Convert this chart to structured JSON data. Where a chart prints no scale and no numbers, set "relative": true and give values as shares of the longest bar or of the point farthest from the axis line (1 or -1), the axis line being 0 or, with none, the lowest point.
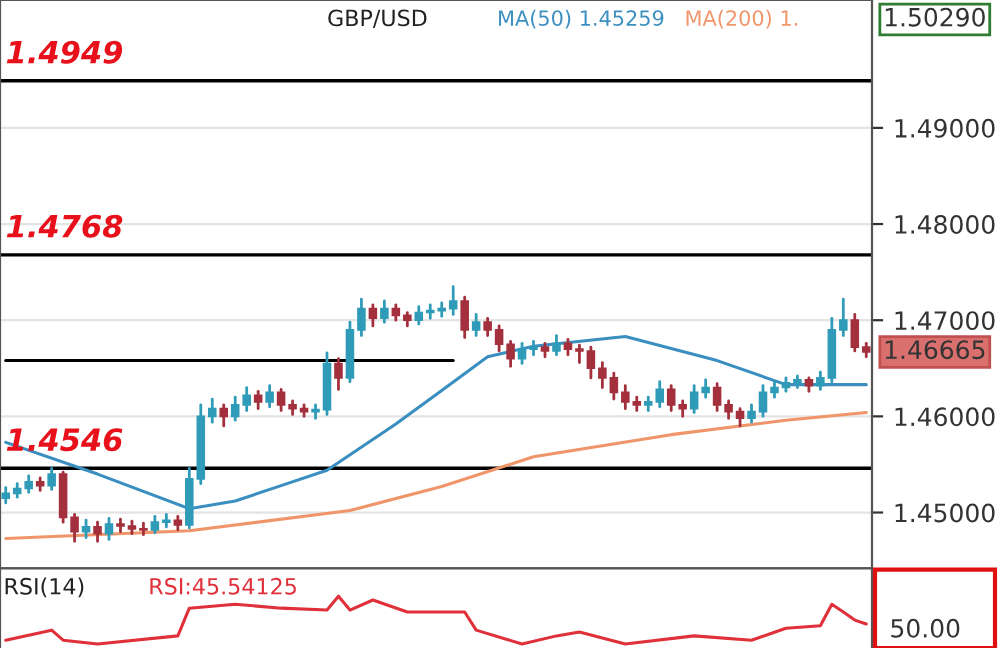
{
  "chart_data": [
    {
      "type": "candlestick",
      "title": "GBP/USD",
      "categories": [
        null,
        null,
        null,
        null,
        null,
        null,
        null,
        null,
        null,
        null,
        null,
        null,
        null,
        null,
        null,
        null,
        null,
        null,
        null,
        null,
        null,
        null,
        null,
        null,
        null,
        null,
        null,
        null,
        null,
        null,
        null,
        null,
        null,
        null,
        null,
        null,
        null,
        null,
        null,
        null,
        null,
        null,
        null,
        null,
        null,
        null,
        null,
        null,
        null,
        null,
        null,
        null,
        null,
        null,
        null,
        null,
        null,
        null,
        null,
        null,
        null,
        null,
        null,
        null,
        null,
        null,
        null,
        null,
        null,
        null,
        null,
        null,
        null,
        null,
        null,
        null
      ],
      "colors": [
        "#2f9bb8",
        "#2f9bb8",
        "#2f9bb8",
        "#a3303c",
        "#2f9bb8",
        "#a3303c",
        "#a3303c",
        "#2f9bb8",
        "#a3303c",
        "#2f9bb8",
        "#a3303c",
        "#a3303c",
        "#a3303c",
        "#2f9bb8",
        "#2f9bb8",
        "#a3303c",
        "#2f9bb8",
        "#2f9bb8",
        "#2f9bb8",
        "#a3303c",
        "#2f9bb8",
        "#2f9bb8",
        "#a3303c",
        "#2f9bb8",
        "#a3303c",
        "#a3303c",
        "#a3303c",
        "#2f9bb8",
        "#2f9bb8",
        "#a3303c",
        "#2f9bb8",
        "#2f9bb8",
        "#a3303c",
        "#2f9bb8",
        "#a3303c",
        "#a3303c",
        "#2f9bb8",
        "#2f9bb8",
        "#2f9bb8",
        "#2f9bb8",
        "#a3303c",
        "#2f9bb8",
        "#a3303c",
        "#a3303c",
        "#a3303c",
        "#2f9bb8",
        "#2f9bb8",
        "#a3303c",
        "#2f9bb8",
        "#a3303c",
        "#a3303c",
        "#a3303c",
        "#a3303c",
        "#a3303c",
        "#a3303c",
        "#a3303c",
        "#2f9bb8",
        "#2f9bb8",
        "#a3303c",
        "#a3303c",
        "#2f9bb8",
        "#2f9bb8",
        "#a3303c",
        "#a3303c",
        "#a3303c",
        "#2f9bb8",
        "#2f9bb8",
        "#2f9bb8",
        "#2f9bb8",
        "#2f9bb8",
        "#a3303c",
        "#2f9bb8",
        "#2f9bb8",
        "#2f9bb8",
        "#a3303c",
        "#a3303c"
      ],
      "ohlc": [
        [
          1.4515,
          1.4526,
          1.451,
          1.452
        ],
        [
          1.452,
          1.453,
          1.4516,
          1.4525
        ],
        [
          1.4525,
          1.4538,
          1.4521,
          1.4532
        ],
        [
          1.4532,
          1.4536,
          1.4523,
          1.4528
        ],
        [
          1.4528,
          1.4546,
          1.4524,
          1.454
        ],
        [
          1.454,
          1.4542,
          1.449,
          1.4495
        ],
        [
          1.4495,
          1.4498,
          1.447,
          1.448
        ],
        [
          1.448,
          1.4492,
          1.4474,
          1.4485
        ],
        [
          1.4485,
          1.449,
          1.447,
          1.4478
        ],
        [
          1.4478,
          1.4494,
          1.4472,
          1.4488
        ],
        [
          1.4488,
          1.4493,
          1.448,
          1.4486
        ],
        [
          1.4486,
          1.4491,
          1.4478,
          1.4483
        ],
        [
          1.4483,
          1.4489,
          1.4477,
          1.4482
        ],
        [
          1.4482,
          1.4496,
          1.4479,
          1.449
        ],
        [
          1.449,
          1.4498,
          1.4485,
          1.4492
        ],
        [
          1.4492,
          1.4496,
          1.4482,
          1.4487
        ],
        [
          1.4487,
          1.4546,
          1.4484,
          1.4535
        ],
        [
          1.4535,
          1.4612,
          1.453,
          1.46
        ],
        [
          1.46,
          1.4618,
          1.4594,
          1.4608
        ],
        [
          1.4608,
          1.4612,
          1.459,
          1.46
        ],
        [
          1.46,
          1.462,
          1.4596,
          1.4612
        ],
        [
          1.4612,
          1.463,
          1.4606,
          1.4622
        ],
        [
          1.4622,
          1.4626,
          1.4608,
          1.4615
        ],
        [
          1.4615,
          1.4632,
          1.461,
          1.4625
        ],
        [
          1.4625,
          1.4628,
          1.4606,
          1.4612
        ],
        [
          1.4612,
          1.4616,
          1.4602,
          1.4608
        ],
        [
          1.4608,
          1.4612,
          1.46,
          1.4605
        ],
        [
          1.4605,
          1.4612,
          1.4598,
          1.4607
        ],
        [
          1.4607,
          1.4666,
          1.4602,
          1.4655
        ],
        [
          1.4655,
          1.466,
          1.4628,
          1.464
        ],
        [
          1.464,
          1.4698,
          1.4636,
          1.469
        ],
        [
          1.469,
          1.4722,
          1.4684,
          1.4712
        ],
        [
          1.4712,
          1.4716,
          1.4694,
          1.4702
        ],
        [
          1.4702,
          1.472,
          1.4698,
          1.4712
        ],
        [
          1.4712,
          1.4716,
          1.47,
          1.4705
        ],
        [
          1.4705,
          1.4708,
          1.4694,
          1.47
        ],
        [
          1.47,
          1.4714,
          1.4696,
          1.4708
        ],
        [
          1.4708,
          1.4716,
          1.4702,
          1.471
        ],
        [
          1.471,
          1.4718,
          1.4704,
          1.4712
        ],
        [
          1.4712,
          1.4735,
          1.4706,
          1.472
        ],
        [
          1.472,
          1.4724,
          1.4682,
          1.469
        ],
        [
          1.469,
          1.4706,
          1.4684,
          1.4698
        ],
        [
          1.4698,
          1.4702,
          1.4684,
          1.469
        ],
        [
          1.469,
          1.4694,
          1.4668,
          1.4675
        ],
        [
          1.4675,
          1.4678,
          1.4652,
          1.466
        ],
        [
          1.466,
          1.4676,
          1.4655,
          1.467
        ],
        [
          1.467,
          1.4678,
          1.4664,
          1.4672
        ],
        [
          1.4672,
          1.4676,
          1.4662,
          1.4668
        ],
        [
          1.4668,
          1.4684,
          1.4664,
          1.4676
        ],
        [
          1.4676,
          1.468,
          1.4664,
          1.467
        ],
        [
          1.467,
          1.4674,
          1.4656,
          1.4668
        ],
        [
          1.4668,
          1.4672,
          1.464,
          1.465
        ],
        [
          1.465,
          1.4656,
          1.463,
          1.464
        ],
        [
          1.464,
          1.4645,
          1.4618,
          1.4625
        ],
        [
          1.4625,
          1.4632,
          1.4608,
          1.4615
        ],
        [
          1.4615,
          1.462,
          1.4606,
          1.4612
        ],
        [
          1.4612,
          1.462,
          1.4606,
          1.4615
        ],
        [
          1.4615,
          1.4636,
          1.461,
          1.4628
        ],
        [
          1.4628,
          1.4632,
          1.4606,
          1.4612
        ],
        [
          1.4612,
          1.4616,
          1.46,
          1.4608
        ],
        [
          1.4608,
          1.4632,
          1.4604,
          1.4625
        ],
        [
          1.4625,
          1.4638,
          1.462,
          1.463
        ],
        [
          1.463,
          1.4634,
          1.4606,
          1.4612
        ],
        [
          1.4612,
          1.4616,
          1.4598,
          1.4605
        ],
        [
          1.4605,
          1.4608,
          1.459,
          1.4598
        ],
        [
          1.4598,
          1.4612,
          1.4594,
          1.4605
        ],
        [
          1.4605,
          1.4632,
          1.46,
          1.4625
        ],
        [
          1.4625,
          1.4636,
          1.462,
          1.463
        ],
        [
          1.463,
          1.464,
          1.4626,
          1.4635
        ],
        [
          1.4635,
          1.4642,
          1.463,
          1.4638
        ],
        [
          1.4638,
          1.464,
          1.4626,
          1.4632
        ],
        [
          1.4632,
          1.4646,
          1.4628,
          1.464
        ],
        [
          1.464,
          1.4702,
          1.4636,
          1.469
        ],
        [
          1.469,
          1.4722,
          1.4684,
          1.47
        ],
        [
          1.47,
          1.4706,
          1.4668,
          1.4672
        ],
        [
          1.4672,
          1.4676,
          1.4662,
          1.4667
        ]
      ],
      "series": [
        {
          "type": "line",
          "name": "MA(50) 1.45259",
          "color": "#3b8fc0",
          "values": [
            1.4573,
            null,
            null,
            null,
            null,
            null,
            null,
            null,
            1.454,
            null,
            null,
            null,
            null,
            null,
            null,
            null,
            1.4504,
            null,
            null,
            null,
            1.4512,
            null,
            null,
            null,
            1.4528,
            null,
            null,
            null,
            1.4544,
            null,
            null,
            null,
            null,
            null,
            1.4592,
            null,
            null,
            null,
            1.4627,
            null,
            null,
            null,
            1.4662,
            null,
            null,
            null,
            1.4673,
            null,
            null,
            null,
            null,
            null,
            null,
            null,
            1.4683,
            null,
            null,
            null,
            null,
            null,
            null,
            null,
            1.4658,
            null,
            null,
            null,
            null,
            null,
            1.4633,
            null,
            null,
            null,
            null,
            null,
            null,
            1.4633
          ]
        },
        {
          "type": "line",
          "name": "MA(200) 1.",
          "color": "#f0956a",
          "values": [
            1.4473,
            null,
            null,
            null,
            null,
            null,
            null,
            null,
            null,
            null,
            null,
            null,
            null,
            null,
            null,
            null,
            1.4481,
            null,
            null,
            null,
            null,
            null,
            null,
            null,
            null,
            null,
            null,
            null,
            null,
            null,
            1.4502,
            null,
            null,
            null,
            null,
            null,
            null,
            null,
            1.4527,
            null,
            null,
            null,
            null,
            null,
            null,
            null,
            1.4558,
            null,
            null,
            null,
            null,
            null,
            null,
            null,
            null,
            null,
            null,
            null,
            1.4581,
            null,
            null,
            null,
            null,
            null,
            null,
            null,
            null,
            null,
            1.4596,
            null,
            null,
            null,
            null,
            null,
            null,
            1.4604
          ]
        },
        {
          "type": "line",
          "color": "#000000",
          "values": [
            1.4658,
            null,
            null,
            null,
            null,
            null,
            null,
            null,
            null,
            null,
            null,
            null,
            null,
            null,
            null,
            null,
            null,
            null,
            null,
            null,
            null,
            null,
            null,
            null,
            null,
            null,
            null,
            null,
            null,
            null,
            null,
            null,
            null,
            null,
            null,
            null,
            null,
            null,
            null,
            1.4658,
            null,
            null,
            null,
            null,
            null,
            null,
            null,
            null,
            null,
            null,
            null,
            null,
            null,
            null,
            null,
            null,
            null,
            null,
            null,
            null,
            null,
            null,
            null,
            null,
            null,
            null,
            null,
            null,
            null,
            null,
            null,
            null,
            null,
            null,
            null,
            null
          ]
        }
      ],
      "ylim": [
        1.4442,
        1.5033
      ],
      "yticks": [
        {
          "value": 1.45,
          "label": "1.45000"
        },
        {
          "value": 1.46,
          "label": "1.46000"
        },
        {
          "value": 1.47,
          "label": "1.47000"
        },
        {
          "value": 1.48,
          "label": "1.48000"
        },
        {
          "value": 1.49,
          "label": "1.49000"
        }
      ],
      "ref_lines": [
        {
          "axis": "y",
          "value": 1.4949,
          "label": "1.4949",
          "color": "#000000"
        },
        {
          "axis": "y",
          "value": 1.4768,
          "label": "1.4768",
          "color": "#000000"
        },
        {
          "axis": "y",
          "value": 1.4546,
          "label": "1.4546",
          "color": "#000000"
        }
      ],
      "annotations": [
        "1.46665",
        "1.50290"
      ],
      "grid": "y",
      "tick_labels": "y"
    },
    {
      "type": "line",
      "title": "RSI(14)",
      "relative": true,
      "tick_labels": false,
      "categories": [
        null,
        null,
        null,
        null,
        null,
        null,
        null,
        null,
        null,
        null,
        null,
        null,
        null,
        null,
        null,
        null,
        null,
        null,
        null,
        null,
        null,
        null,
        null,
        null,
        null,
        null,
        null,
        null,
        null,
        null,
        null,
        null,
        null,
        null,
        null,
        null,
        null,
        null,
        null,
        null,
        null,
        null,
        null,
        null,
        null,
        null,
        null,
        null,
        null,
        null,
        null,
        null,
        null,
        null,
        null,
        null,
        null,
        null,
        null,
        null,
        null,
        null,
        null,
        null,
        null,
        null,
        null,
        null,
        null,
        null,
        null,
        null,
        null,
        null,
        null,
        null
      ],
      "series": [
        {
          "name": "RSI:45.54125",
          "color": "#e0303a",
          "values": [
            0.08,
            null,
            null,
            null,
            0.29,
            0.08,
            null,
            null,
            0,
            null,
            null,
            null,
            null,
            null,
            null,
            0.17,
            0.75,
            null,
            null,
            null,
            0.83,
            null,
            null,
            null,
            0.75,
            null,
            null,
            null,
            0.71,
            1,
            0.71,
            null,
            0.92,
            null,
            null,
            0.67,
            null,
            null,
            null,
            null,
            0.67,
            0.29,
            null,
            null,
            null,
            0,
            null,
            null,
            0.17,
            null,
            0.25,
            null,
            null,
            null,
            0,
            null,
            null,
            null,
            null,
            null,
            0.17,
            null,
            null,
            null,
            null,
            0.08,
            null,
            null,
            0.33,
            null,
            null,
            0.38,
            0.83,
            0.67,
            0.5,
            0.42
          ]
        }
      ],
      "annotations": [
        "50.00"
      ]
    }
  ]
}
